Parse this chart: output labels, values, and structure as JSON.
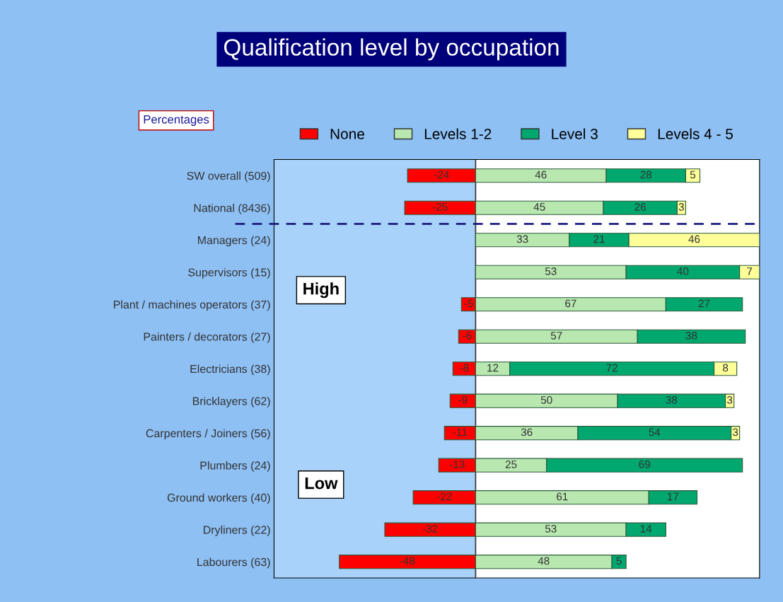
{
  "chart_data": {
    "type": "bar",
    "orientation": "horizontal",
    "stacked": true,
    "title": "Qualification level by occupation",
    "categories": [
      "SW overall (509)",
      "National (8436)",
      "Managers (24)",
      "Supervisors (15)",
      "Plant / machines operators (37)",
      "Painters / decorators (27)",
      "Electricians (38)",
      "Bricklayers (62)",
      "Carpenters / Joiners (56)",
      "Plumbers (24)",
      "Ground workers (40)",
      "Dryliners (22)",
      "Labourers (63)"
    ],
    "series": [
      {
        "name": "None",
        "color": "#ff0000",
        "values": [
          -24,
          -25,
          null,
          null,
          -5,
          -6,
          -8,
          -9,
          -11,
          -13,
          -22,
          -32,
          -48
        ]
      },
      {
        "name": "Levels 1-2",
        "color": "#b8e8b0",
        "values": [
          46,
          45,
          33,
          53,
          67,
          57,
          12,
          50,
          36,
          25,
          61,
          53,
          48
        ]
      },
      {
        "name": "Level 3",
        "color": "#00a870",
        "values": [
          28,
          26,
          21,
          40,
          27,
          38,
          72,
          38,
          54,
          69,
          17,
          14,
          5
        ]
      },
      {
        "name": "Levels 4 - 5",
        "color": "#ffff99",
        "values": [
          5,
          3,
          46,
          7,
          null,
          null,
          8,
          3,
          3,
          null,
          null,
          null,
          null
        ]
      }
    ],
    "xlim": [
      -71,
      100
    ],
    "tick_labels": "y",
    "data_labels": true,
    "legend": "top",
    "bands": [
      {
        "axis": "x",
        "from": -71,
        "to": 0,
        "color": "#a9d2fa"
      }
    ],
    "annotations": [
      "Percentages",
      "High",
      "Low"
    ]
  }
}
